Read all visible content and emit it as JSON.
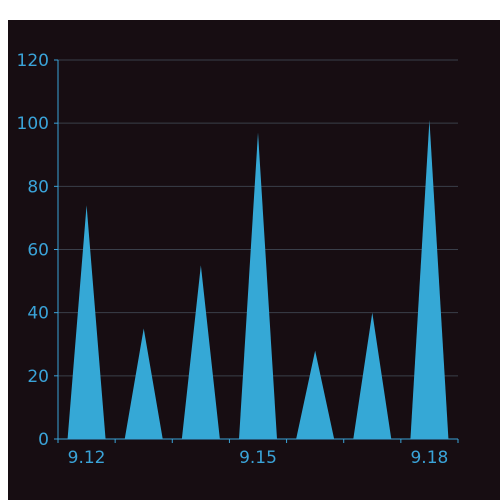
{
  "chart_data": {
    "type": "bar",
    "bar_shape": "triangle",
    "categories": [
      "9.12",
      "9.13",
      "9.14",
      "9.15",
      "9.16",
      "9.17",
      "9.18"
    ],
    "x_tick_labels": [
      "9.12",
      "9.15",
      "9.18"
    ],
    "values": [
      74,
      35,
      55,
      97,
      28,
      40,
      101
    ],
    "title": "",
    "xlabel": "",
    "ylabel": "",
    "ylim": [
      0,
      120
    ],
    "yticks": [
      0,
      20,
      40,
      60,
      80,
      100,
      120
    ],
    "grid": true,
    "legend": "none",
    "colors": {
      "background": "#170d12",
      "bar": "#35a8d6",
      "axis": "#3aa3d8",
      "grid": "#3a3f4a"
    }
  }
}
